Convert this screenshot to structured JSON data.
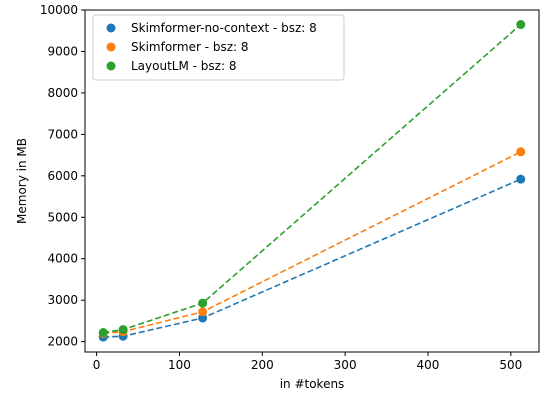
{
  "chart_data": {
    "type": "line",
    "title": "",
    "xlabel": "in #tokens",
    "ylabel": "Memory in MB",
    "xlim": [
      -14,
      534
    ],
    "ylim": [
      1750,
      10000
    ],
    "xticks": [
      0,
      100,
      200,
      300,
      400,
      500
    ],
    "yticks": [
      2000,
      3000,
      4000,
      5000,
      6000,
      7000,
      8000,
      9000,
      10000
    ],
    "grid": false,
    "legend_position": "top-left",
    "line_style": "dashed",
    "x": [
      8,
      32,
      128,
      512
    ],
    "series": [
      {
        "name": "Skimformer-no-context - bsz: 8",
        "color": "#1f77b4",
        "values": [
          2110,
          2130,
          2570,
          5920
        ]
      },
      {
        "name": "Skimformer - bsz: 8",
        "color": "#ff7f0e",
        "values": [
          2200,
          2240,
          2720,
          6580
        ]
      },
      {
        "name": "LayoutLM - bsz: 8",
        "color": "#2ca02c",
        "values": [
          2220,
          2290,
          2930,
          9650
        ]
      }
    ]
  }
}
